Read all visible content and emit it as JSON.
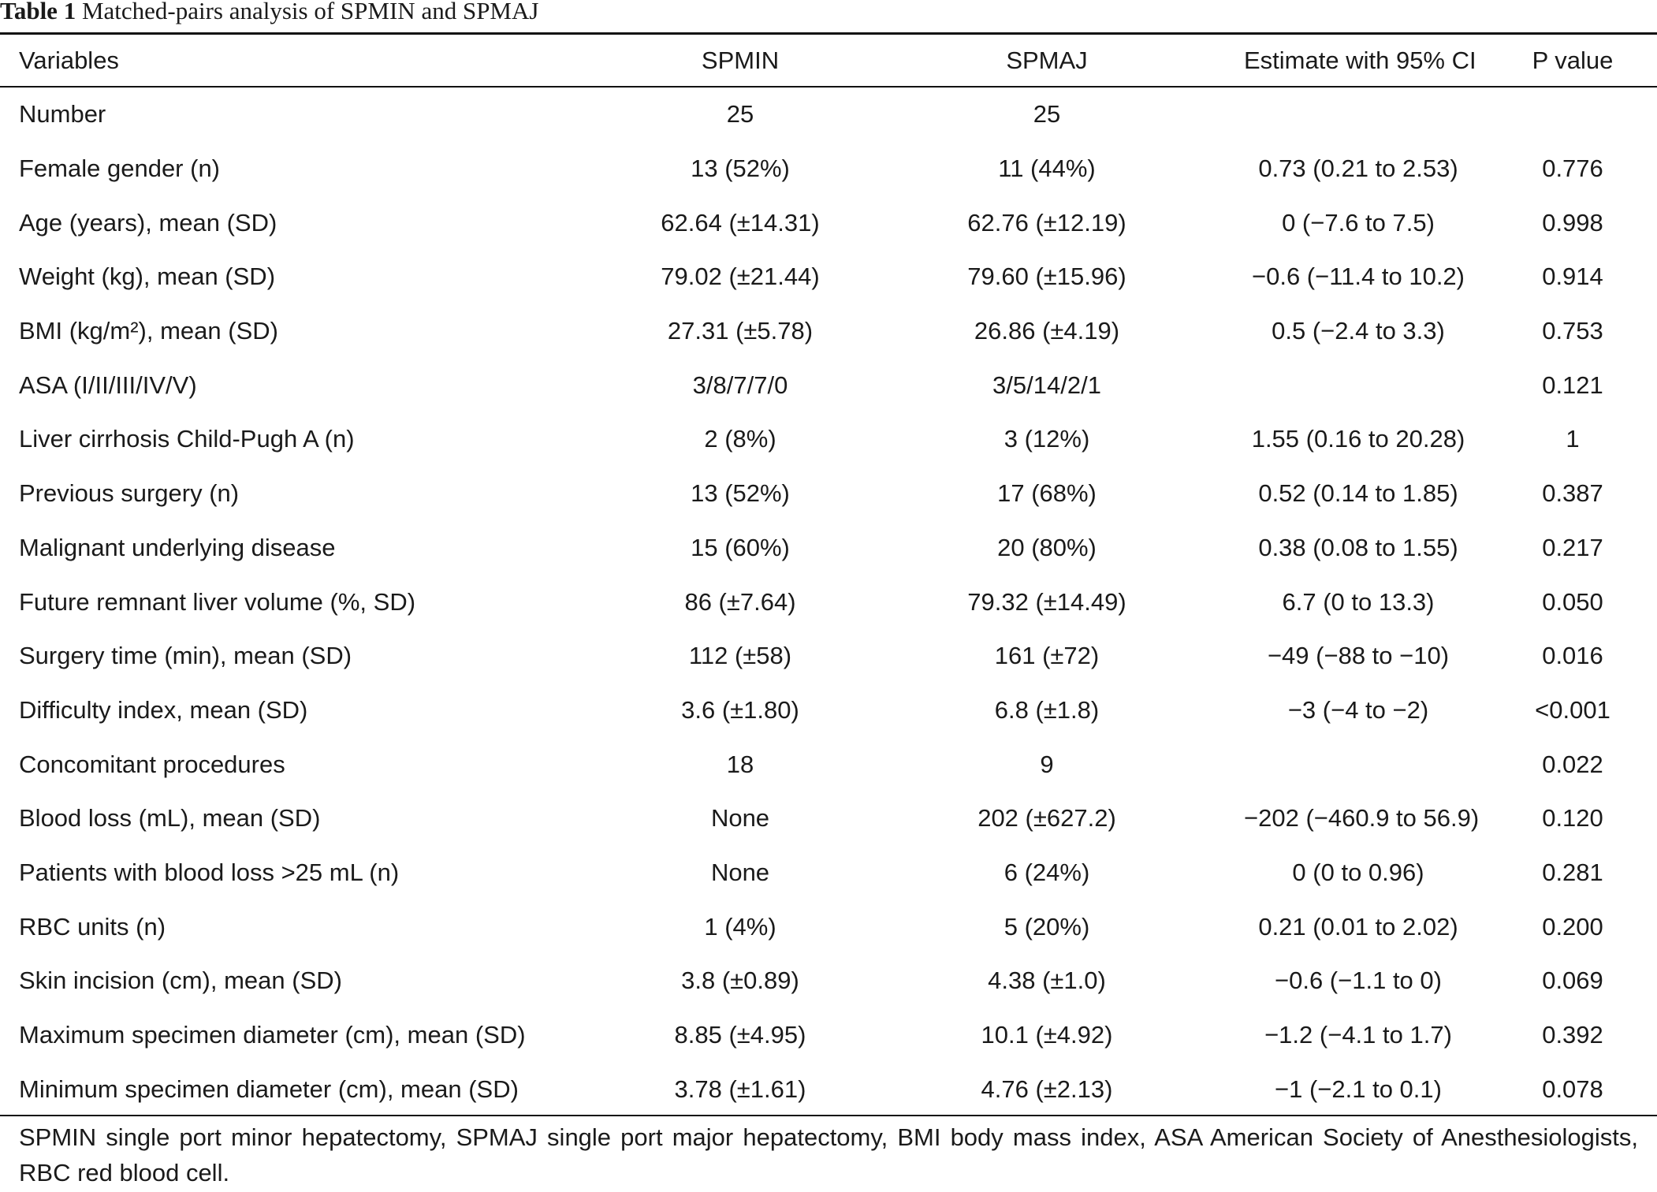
{
  "caption": {
    "label": "Table 1",
    "title": "Matched-pairs analysis of SPMIN and SPMAJ"
  },
  "columns": [
    "Variables",
    "SPMIN",
    "SPMAJ",
    "Estimate with 95% CI",
    "P value"
  ],
  "rows": [
    [
      "Number",
      "25",
      "25",
      "",
      ""
    ],
    [
      "Female gender (n)",
      "13 (52%)",
      "11 (44%)",
      "0.73 (0.21 to 2.53)",
      "0.776"
    ],
    [
      "Age (years), mean (SD)",
      "62.64 (±14.31)",
      "62.76 (±12.19)",
      "0 (−7.6 to 7.5)",
      "0.998"
    ],
    [
      "Weight (kg), mean (SD)",
      "79.02 (±21.44)",
      "79.60 (±15.96)",
      "−0.6 (−11.4 to 10.2)",
      "0.914"
    ],
    [
      "BMI (kg/m²), mean (SD)",
      "27.31 (±5.78)",
      "26.86 (±4.19)",
      "0.5 (−2.4 to 3.3)",
      "0.753"
    ],
    [
      "ASA (I/II/III/IV/V)",
      "3/8/7/7/0",
      "3/5/14/2/1",
      "",
      "0.121"
    ],
    [
      "Liver cirrhosis Child-Pugh A (n)",
      "2 (8%)",
      "3 (12%)",
      "1.55 (0.16 to 20.28)",
      "1"
    ],
    [
      "Previous surgery (n)",
      "13 (52%)",
      "17 (68%)",
      "0.52 (0.14 to 1.85)",
      "0.387"
    ],
    [
      "Malignant underlying disease",
      "15 (60%)",
      "20 (80%)",
      "0.38 (0.08 to 1.55)",
      "0.217"
    ],
    [
      "Future remnant liver volume (%, SD)",
      "86 (±7.64)",
      "79.32 (±14.49)",
      "6.7 (0 to 13.3)",
      "0.050"
    ],
    [
      "Surgery time (min), mean (SD)",
      "112 (±58)",
      "161 (±72)",
      "−49 (−88 to −10)",
      "0.016"
    ],
    [
      "Difficulty index, mean (SD)",
      "3.6 (±1.80)",
      "6.8 (±1.8)",
      "−3 (−4 to −2)",
      "<0.001"
    ],
    [
      "Concomitant procedures",
      "18",
      "9",
      "",
      "0.022"
    ],
    [
      "Blood loss (mL), mean (SD)",
      "None",
      "202 (±627.2)",
      "−202 (−460.9 to 56.9)",
      "0.120"
    ],
    [
      "Patients with blood loss >25 mL (n)",
      "None",
      "6 (24%)",
      "0 (0 to 0.96)",
      "0.281"
    ],
    [
      "RBC units (n)",
      "1 (4%)",
      "5 (20%)",
      "0.21 (0.01 to 2.02)",
      "0.200"
    ],
    [
      "Skin incision (cm), mean (SD)",
      "3.8 (±0.89)",
      "4.38 (±1.0)",
      "−0.6 (−1.1 to 0)",
      "0.069"
    ],
    [
      "Maximum specimen diameter (cm), mean (SD)",
      "8.85 (±4.95)",
      "10.1 (±4.92)",
      "−1.2 (−4.1 to 1.7)",
      "0.392"
    ],
    [
      "Minimum specimen diameter (cm), mean (SD)",
      "3.78 (±1.61)",
      "4.76 (±2.13)",
      "−1 (−2.1 to 0.1)",
      "0.078"
    ]
  ],
  "footnote": "SPMIN single port minor hepatectomy, SPMAJ single port major hepatectomy, BMI body mass index, ASA American Society of Anesthesiologists, RBC red blood cell."
}
